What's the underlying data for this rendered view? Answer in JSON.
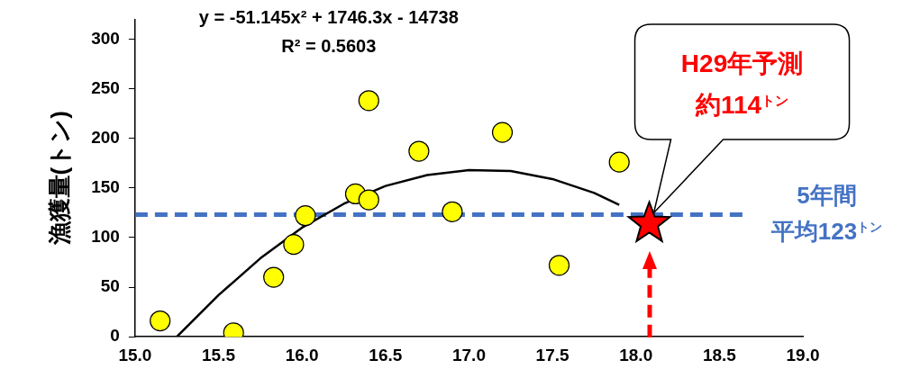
{
  "chart_data": {
    "type": "scatter",
    "ylabel": "漁獲量(トン)",
    "xlim": [
      15,
      19
    ],
    "ylim": [
      0,
      320
    ],
    "xticks": [
      {
        "value": 15,
        "label": "15.0"
      },
      {
        "value": 15.5,
        "label": "15.5"
      },
      {
        "value": 16,
        "label": "16.0"
      },
      {
        "value": 16.5,
        "label": "16.5"
      },
      {
        "value": 17,
        "label": "17.0"
      },
      {
        "value": 17.5,
        "label": "17.5"
      },
      {
        "value": 18,
        "label": "18.0"
      },
      {
        "value": 18.5,
        "label": "18.5"
      },
      {
        "value": 19,
        "label": "19.0"
      }
    ],
    "yticks": [
      0,
      50,
      100,
      150,
      200,
      250,
      300
    ],
    "grid": false,
    "legend": false,
    "marker": "circle",
    "series": [
      {
        "color": "#ffff00",
        "x": [
          15.15,
          15.59,
          15.83,
          15.95,
          16.02,
          16.32,
          16.4,
          16.4,
          16.7,
          16.9,
          17.2,
          17.54,
          17.9
        ],
        "values": [
          16,
          4,
          60,
          93,
          122,
          144,
          138,
          238,
          187,
          126,
          206,
          72,
          176
        ]
      },
      {
        "type": "line",
        "color": "#000000",
        "marker": "none",
        "line_style": "solid",
        "x": [
          15.25,
          15.5,
          15.75,
          16.0,
          16.25,
          16.5,
          16.75,
          17.0,
          17.25,
          17.5,
          17.75,
          17.9
        ],
        "values": [
          0,
          42,
          79,
          110,
          134,
          152,
          163,
          168,
          167,
          159,
          145,
          133
        ]
      },
      {
        "type": "scatter",
        "color": "#ff0000",
        "marker": "star",
        "x": [
          18.08
        ],
        "values": [
          114
        ]
      }
    ],
    "ref_lines": [
      {
        "axis": "y",
        "value": 123,
        "label": "5年間平均123$^{トン}$",
        "color": "#4472c4",
        "line_style": "dashed"
      }
    ],
    "annotations": [
      "y = -51.145x² + 1746.3x - 14738\nR² = 0.5603",
      "H29年予測約114$^{トン}$"
    ]
  }
}
